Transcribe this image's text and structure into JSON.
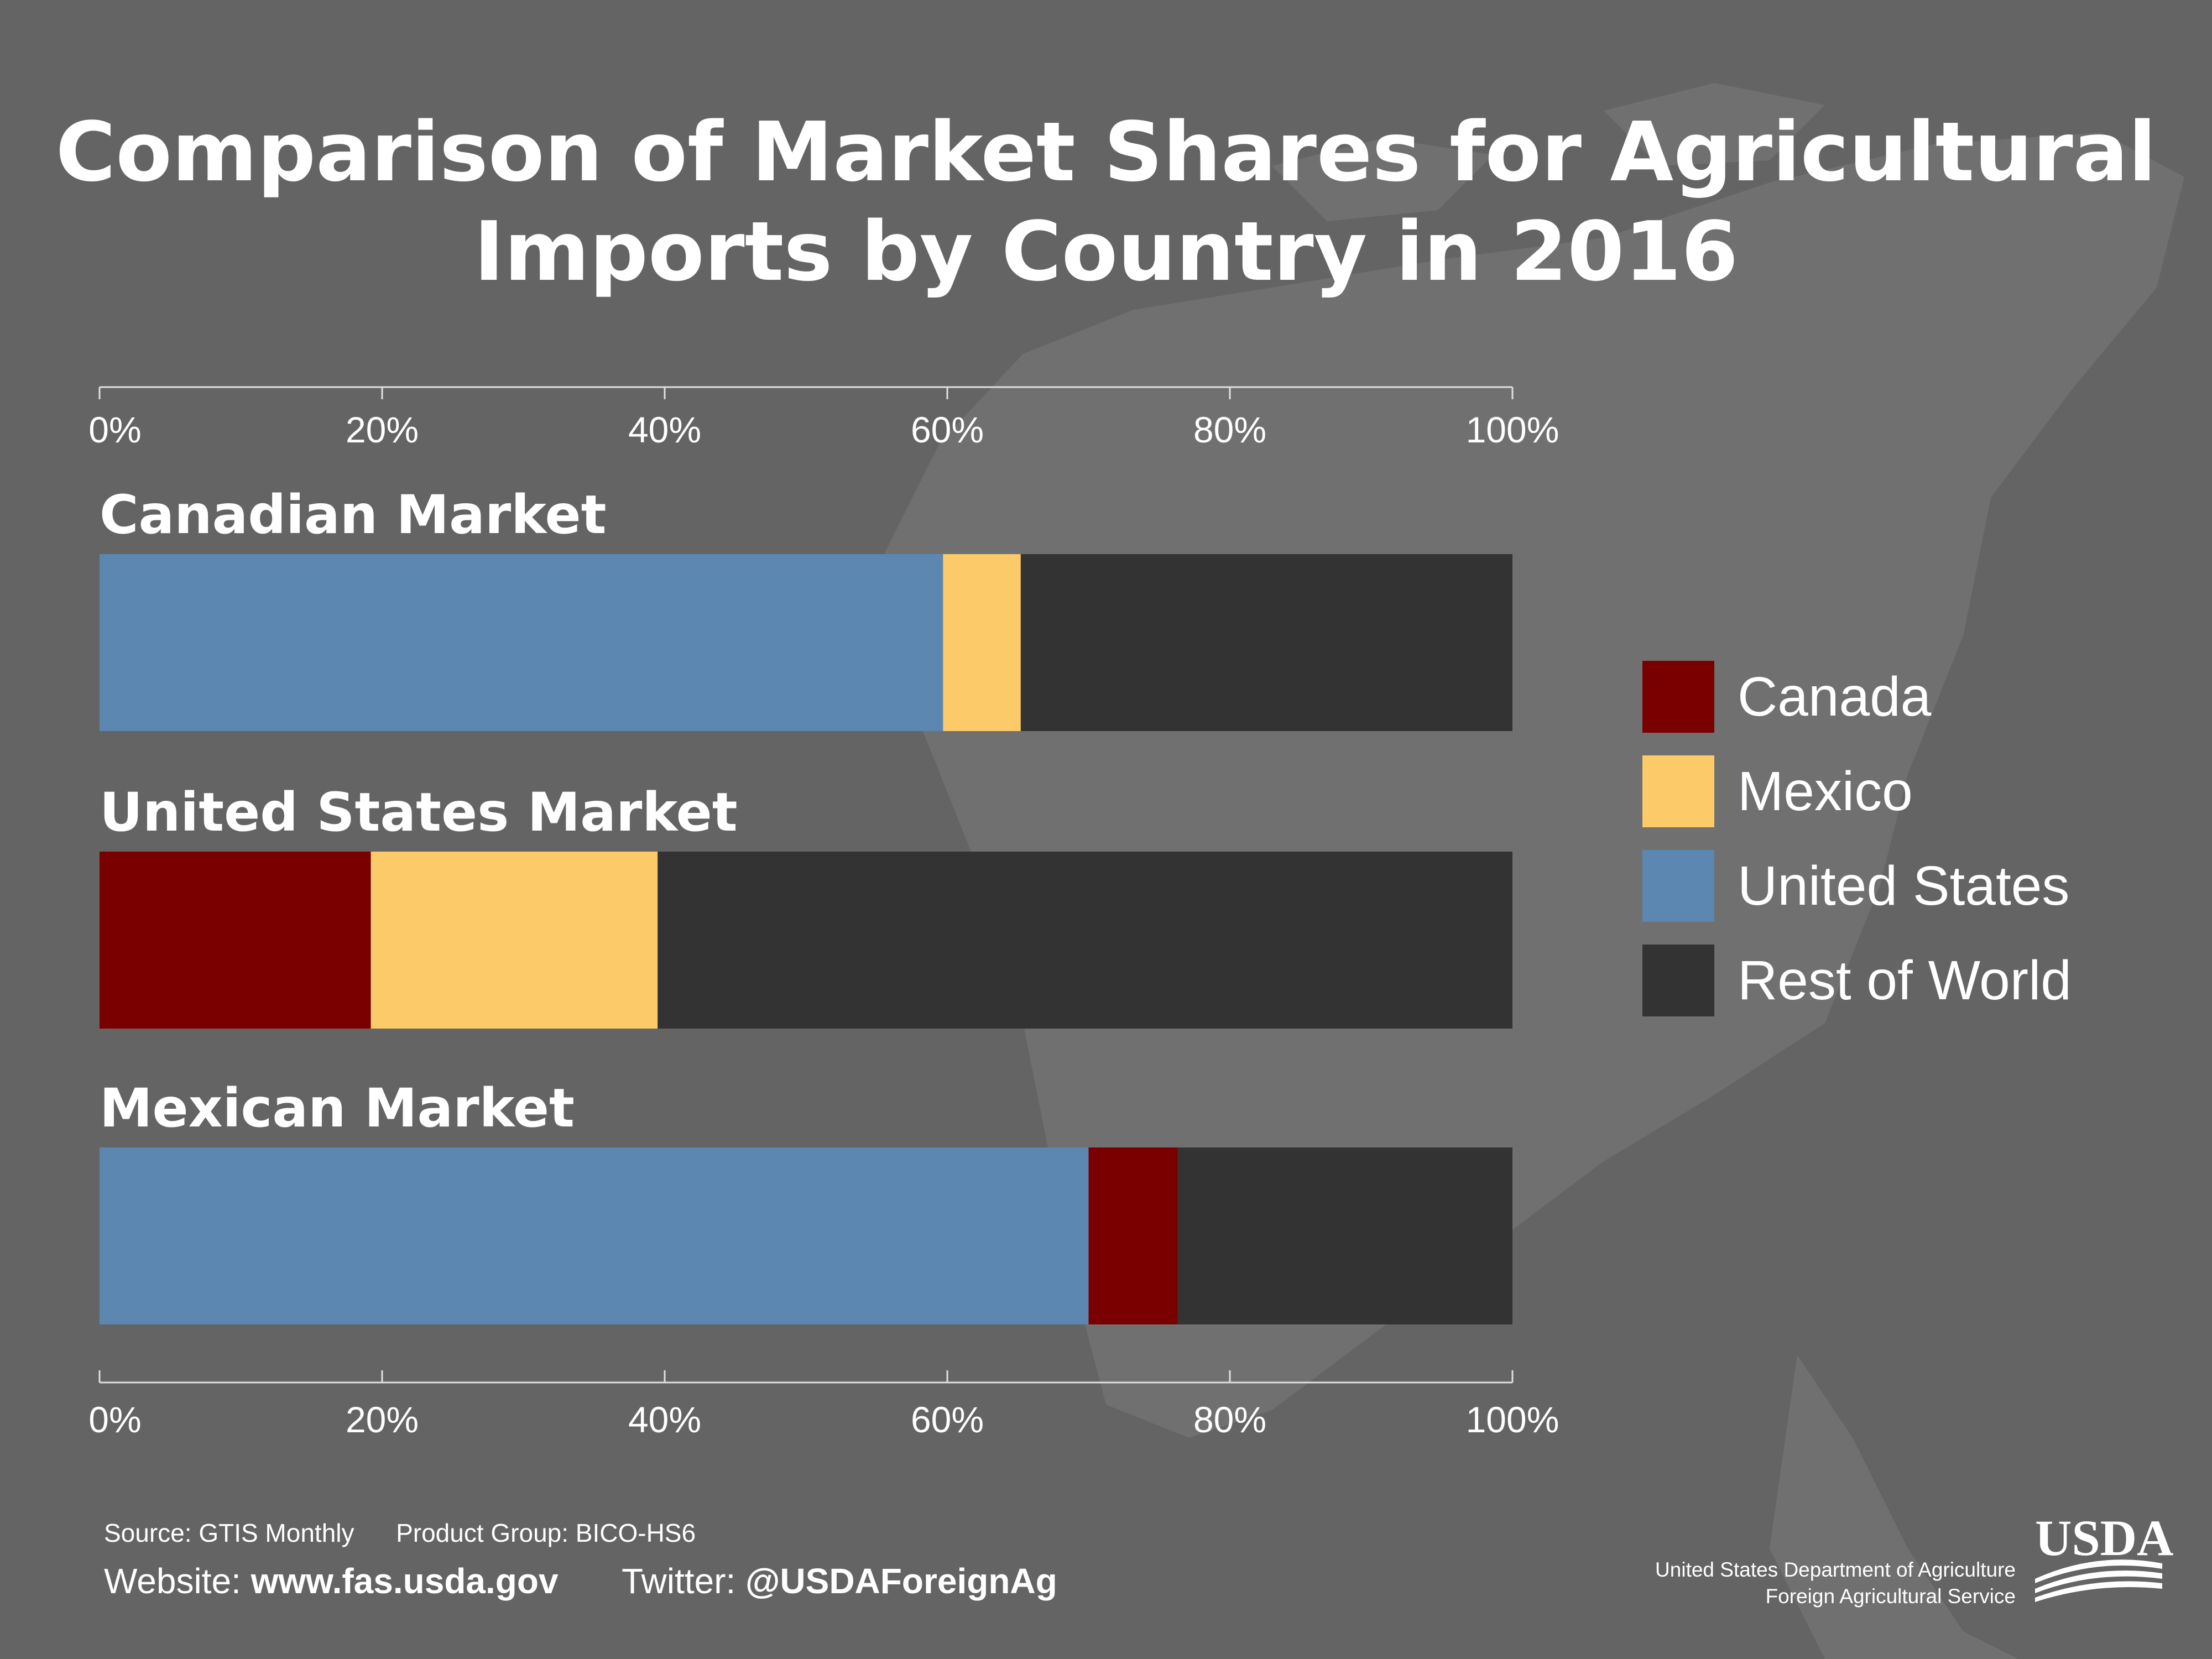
{
  "title": {
    "line1": "Comparison of Market Shares for Agricultural",
    "line2": "Imports by Country in 2016"
  },
  "colors": {
    "background": "#646464",
    "canada": "#7a0000",
    "mexico": "#fdca69",
    "united_states": "#5b87b0",
    "rest_of_world": "#333333"
  },
  "chart_data": {
    "type": "bar",
    "orientation": "horizontal",
    "stacked": true,
    "xlim": [
      0,
      100
    ],
    "x_ticks": [
      "0%",
      "20%",
      "40%",
      "60%",
      "80%",
      "100%"
    ],
    "categories": [
      "Canadian Market",
      "United States Market",
      "Mexican Market"
    ],
    "segments": [
      [
        {
          "series": "United States",
          "value": 59.7
        },
        {
          "series": "Mexico",
          "value": 5.5
        },
        {
          "series": "Rest of World",
          "value": 34.8
        }
      ],
      [
        {
          "series": "Canada",
          "value": 19.2
        },
        {
          "series": "Mexico",
          "value": 20.3
        },
        {
          "series": "Rest of World",
          "value": 60.5
        }
      ],
      [
        {
          "series": "United States",
          "value": 70.0
        },
        {
          "series": "Canada",
          "value": 6.3
        },
        {
          "series": "Rest of World",
          "value": 23.7
        }
      ]
    ],
    "legend": {
      "position": "right",
      "entries": [
        {
          "name": "Canada",
          "color": "#7a0000"
        },
        {
          "name": "Mexico",
          "color": "#fdca69"
        },
        {
          "name": "United States",
          "color": "#5b87b0"
        },
        {
          "name": "Rest of World",
          "color": "#333333"
        }
      ]
    },
    "grid": false
  },
  "footer": {
    "source_label": "Source:",
    "source_value": "GTIS Monthly",
    "product_label": "Product Group:",
    "product_value": "BICO-HS6",
    "website_label": "Website:",
    "website_value": "www.fas.usda.gov",
    "twitter_label": "Twitter:",
    "twitter_value": "@USDAForeignAg"
  },
  "agency": {
    "logo_text": "USDA",
    "line1": "United States Department of Agriculture",
    "line2": "Foreign Agricultural Service"
  }
}
